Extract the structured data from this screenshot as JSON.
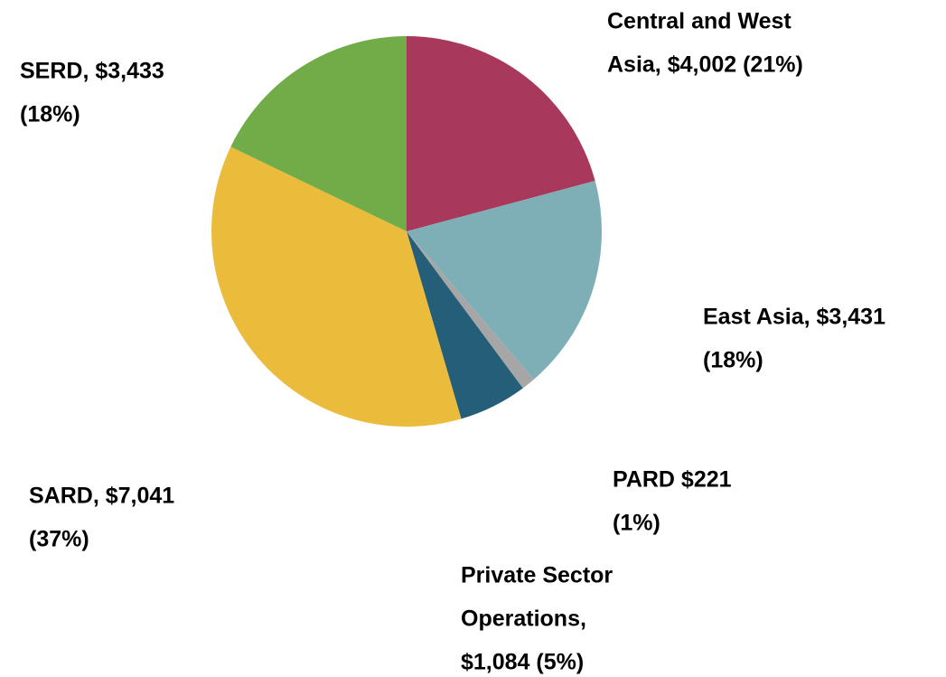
{
  "chart_data": {
    "type": "pie",
    "values": [
      4002,
      3431,
      221,
      1084,
      7041,
      3433
    ],
    "value_labels": [
      [
        "Central and West",
        "Asia, $4,002 (21%)"
      ],
      [
        "East Asia, $3,431",
        "(18%)"
      ],
      [
        "PARD $221",
        "(1%)"
      ],
      [
        "Private Sector",
        "Operations,",
        "$1,084 (5%)"
      ],
      [
        "SARD, $7,041",
        "(37%)"
      ],
      [
        "SERD,  $3,433",
        "(18%)"
      ]
    ],
    "colors": [
      "#a8385c",
      "#7fafb6",
      "#a6a6a6",
      "#245e78",
      "#ebbc3c",
      "#72ac48"
    ]
  }
}
